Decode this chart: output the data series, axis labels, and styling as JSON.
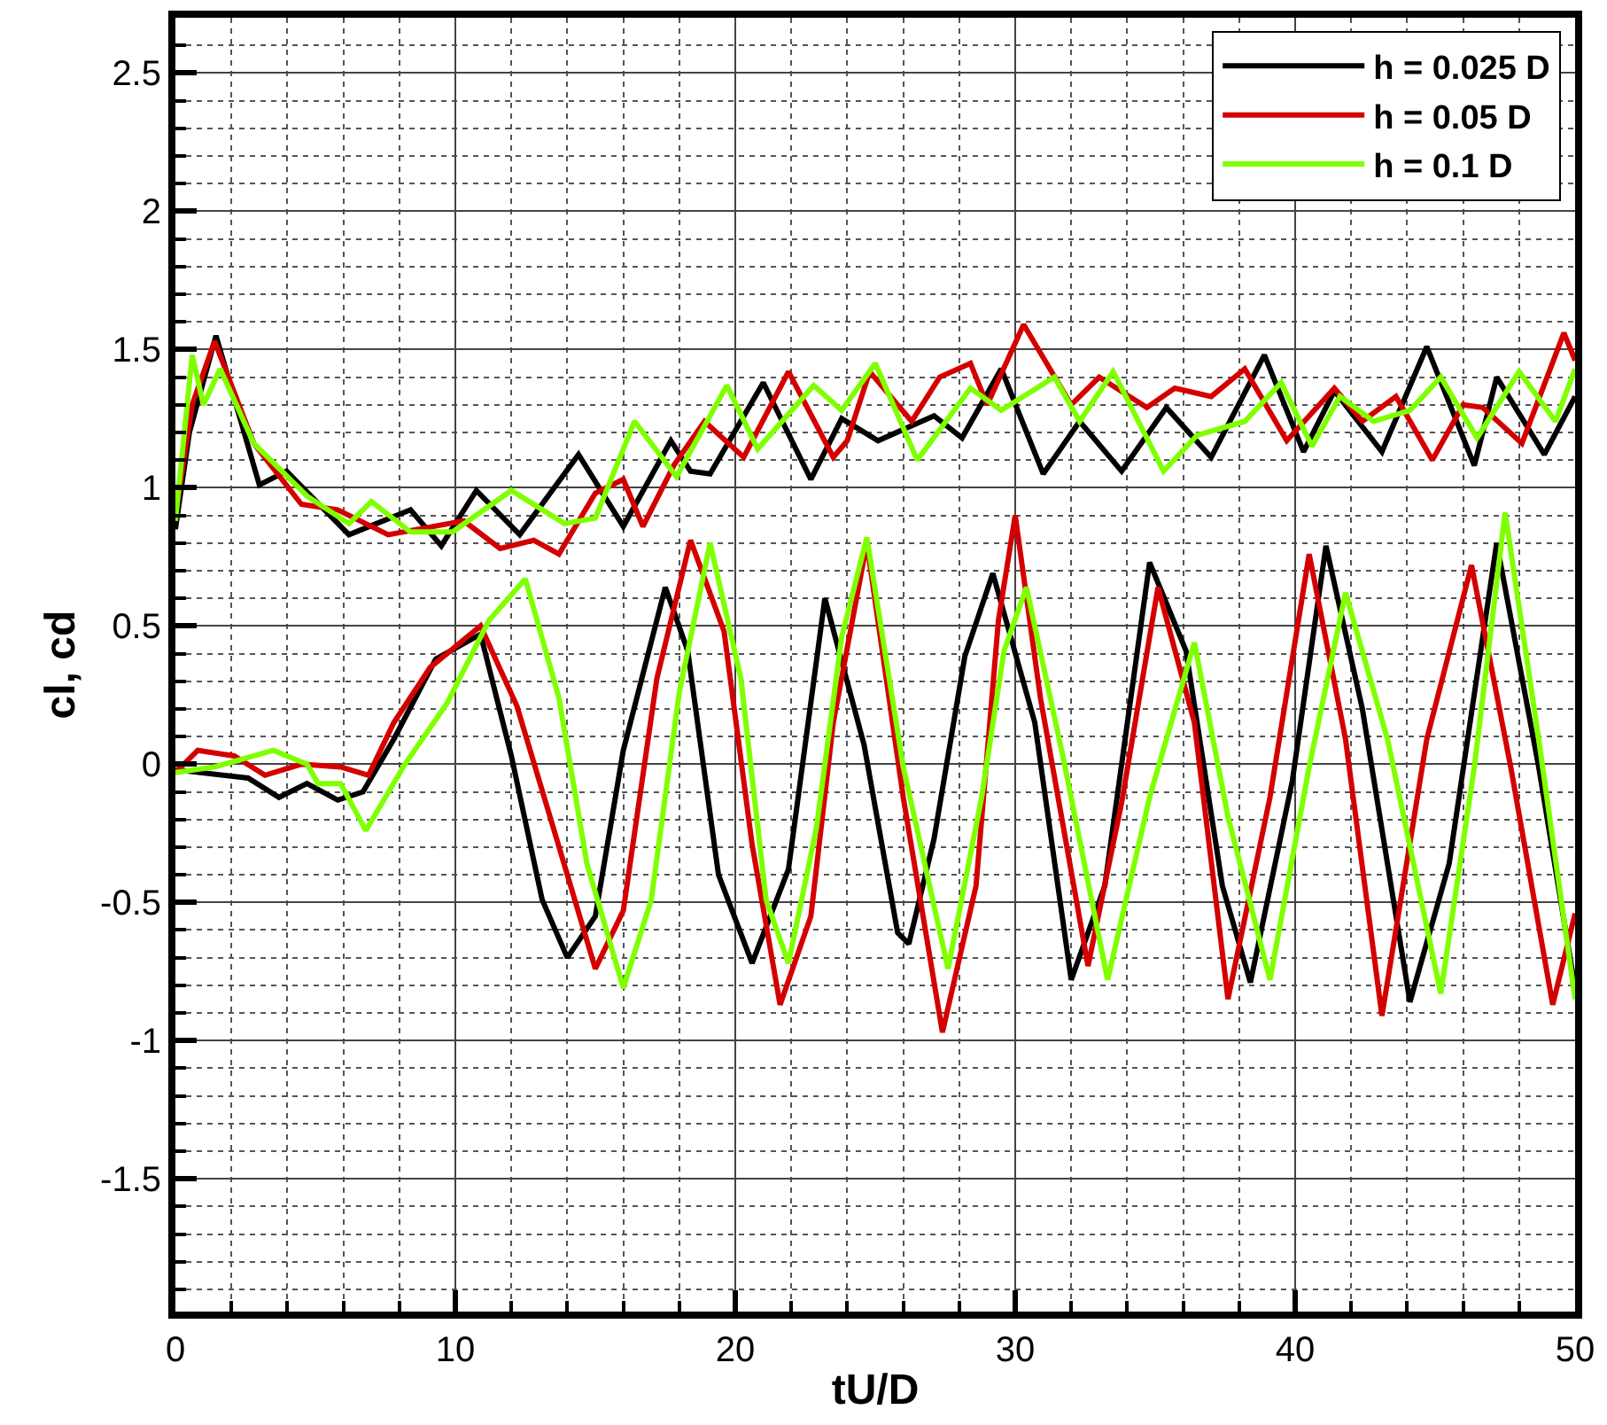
{
  "chart_data": {
    "type": "line",
    "xlabel": "tU/D",
    "ylabel": "cl, cd",
    "xlim": [
      0,
      50
    ],
    "ylim": [
      -1.98,
      2.7
    ],
    "xticks": [
      0,
      10,
      20,
      30,
      40,
      50
    ],
    "yticks": [
      -1.5,
      -1,
      -0.5,
      0,
      0.5,
      1,
      1.5,
      2,
      2.5
    ],
    "grid": true,
    "legend": "top right",
    "marker": "none",
    "line_style": "solid",
    "series": [
      {
        "name": "h = 0.025 D",
        "color": "#000000",
        "x": [
          0,
          0.5,
          1.45,
          3.0,
          3.97,
          6.2,
          8.4,
          9.5,
          10.75,
          12.3,
          14.4,
          16.0,
          17.7,
          18.4,
          19.1,
          21.0,
          22.7,
          23.8,
          25.1,
          27.1,
          28.1,
          29.5,
          31.0,
          32.3,
          33.8,
          35.4,
          37.0,
          38.9,
          40.3,
          41.4,
          43.1,
          44.7,
          46.4,
          47.2,
          48.9,
          50
        ],
        "values": [
          0.85,
          1.2,
          1.55,
          1.01,
          1.06,
          0.83,
          0.92,
          0.79,
          0.99,
          0.83,
          1.12,
          0.86,
          1.17,
          1.06,
          1.05,
          1.38,
          1.03,
          1.25,
          1.17,
          1.26,
          1.18,
          1.43,
          1.05,
          1.24,
          1.06,
          1.29,
          1.11,
          1.48,
          1.13,
          1.35,
          1.13,
          1.51,
          1.08,
          1.4,
          1.12,
          1.33
        ]
      },
      {
        "name": "h = 0.05 D",
        "color": "#d40000",
        "x": [
          0,
          0.6,
          1.4,
          2.8,
          4.5,
          5.8,
          7.6,
          10.3,
          11.6,
          12.8,
          13.7,
          15.0,
          16.0,
          16.7,
          17.8,
          18.9,
          20.3,
          21.9,
          23.5,
          24.0,
          24.8,
          26.3,
          27.3,
          28.4,
          29.0,
          30.3,
          32.0,
          33.0,
          34.7,
          35.7,
          37.0,
          38.2,
          39.7,
          41.4,
          42.4,
          43.6,
          44.9,
          46.0,
          46.7,
          48.1,
          49.6,
          50
        ],
        "values": [
          0.9,
          1.3,
          1.53,
          1.16,
          0.94,
          0.92,
          0.83,
          0.88,
          0.78,
          0.81,
          0.76,
          0.98,
          1.03,
          0.86,
          1.08,
          1.24,
          1.11,
          1.42,
          1.11,
          1.17,
          1.42,
          1.24,
          1.4,
          1.45,
          1.3,
          1.59,
          1.3,
          1.4,
          1.29,
          1.36,
          1.33,
          1.43,
          1.17,
          1.36,
          1.24,
          1.33,
          1.1,
          1.3,
          1.29,
          1.16,
          1.56,
          1.46
        ]
      },
      {
        "name": "h = 0.1 D",
        "color": "#80ff00",
        "x": [
          0,
          0.6,
          1.0,
          1.6,
          2.8,
          4.7,
          6.2,
          7.0,
          8.4,
          9.9,
          12.0,
          13.9,
          15.0,
          16.4,
          17.9,
          19.7,
          20.8,
          22.8,
          23.8,
          25.0,
          26.5,
          28.4,
          29.5,
          31.4,
          32.3,
          33.5,
          35.3,
          36.5,
          38.2,
          39.5,
          40.6,
          41.6,
          42.8,
          44.1,
          45.2,
          46.5,
          48.0,
          49.3,
          50
        ],
        "values": [
          0.88,
          1.48,
          1.3,
          1.43,
          1.16,
          0.97,
          0.87,
          0.95,
          0.84,
          0.84,
          0.99,
          0.87,
          0.89,
          1.24,
          1.04,
          1.37,
          1.14,
          1.37,
          1.28,
          1.45,
          1.1,
          1.36,
          1.28,
          1.4,
          1.24,
          1.42,
          1.06,
          1.19,
          1.24,
          1.38,
          1.15,
          1.33,
          1.24,
          1.28,
          1.4,
          1.18,
          1.42,
          1.24,
          1.43
        ]
      },
      {
        "color": "#000000",
        "x": [
          0,
          2.6,
          3.7,
          4.7,
          5.8,
          6.7,
          7.8,
          9.3,
          10.9,
          12.0,
          13.1,
          14.0,
          15.0,
          16.0,
          17.5,
          18.3,
          19.4,
          20.6,
          21.9,
          23.2,
          24.6,
          25.8,
          26.2,
          27.1,
          28.2,
          29.2,
          30.7,
          32.0,
          33.2,
          34.8,
          36.1,
          37.4,
          38.4,
          39.9,
          41.1,
          42.4,
          44.1,
          45.5,
          47.2,
          48.7,
          50
        ],
        "values": [
          -0.02,
          -0.05,
          -0.12,
          -0.07,
          -0.13,
          -0.1,
          0.09,
          0.38,
          0.47,
          0.03,
          -0.49,
          -0.7,
          -0.55,
          0.05,
          0.64,
          0.41,
          -0.4,
          -0.72,
          -0.38,
          0.6,
          0.07,
          -0.61,
          -0.65,
          -0.27,
          0.39,
          0.69,
          0.15,
          -0.78,
          -0.44,
          0.73,
          0.41,
          -0.44,
          -0.79,
          -0.06,
          0.79,
          0.2,
          -0.86,
          -0.36,
          0.8,
          -0.01,
          -0.81
        ]
      },
      {
        "color": "#d40000",
        "x": [
          0,
          0.8,
          2.1,
          3.2,
          4.5,
          5.9,
          6.9,
          7.8,
          9.1,
          10.9,
          12.2,
          13.5,
          15.0,
          16.0,
          17.2,
          18.4,
          19.6,
          20.6,
          21.6,
          22.7,
          23.5,
          24.7,
          26.0,
          27.4,
          28.6,
          29.4,
          30.0,
          30.9,
          32.6,
          33.8,
          35.1,
          36.4,
          37.6,
          39.1,
          40.5,
          41.8,
          43.1,
          44.7,
          46.3,
          47.7,
          49.2,
          50
        ],
        "values": [
          -0.03,
          0.05,
          0.03,
          -0.04,
          0,
          -0.01,
          -0.04,
          0.15,
          0.35,
          0.5,
          0.21,
          -0.23,
          -0.74,
          -0.53,
          0.31,
          0.81,
          0.48,
          -0.29,
          -0.87,
          -0.55,
          0.15,
          0.8,
          -0.12,
          -0.97,
          -0.44,
          0.52,
          0.9,
          0.24,
          -0.73,
          -0.14,
          0.64,
          0.15,
          -0.85,
          -0.12,
          0.76,
          0.09,
          -0.91,
          0.09,
          0.72,
          -0.01,
          -0.87,
          -0.54
        ]
      },
      {
        "color": "#80ff00",
        "x": [
          0,
          1.4,
          3.5,
          4.7,
          5.1,
          5.9,
          6.8,
          8.2,
          9.7,
          11.2,
          12.5,
          13.7,
          14.7,
          16.0,
          17.0,
          18.0,
          19.1,
          20.2,
          21.1,
          21.9,
          22.9,
          23.8,
          24.7,
          26.0,
          27.6,
          28.8,
          29.6,
          30.4,
          31.7,
          33.3,
          34.8,
          36.4,
          37.6,
          39.1,
          40.5,
          41.8,
          43.3,
          45.2,
          46.4,
          47.5,
          48.7,
          50
        ],
        "values": [
          -0.03,
          -0.01,
          0.05,
          0,
          -0.07,
          -0.07,
          -0.24,
          0,
          0.22,
          0.52,
          0.67,
          0.24,
          -0.36,
          -0.81,
          -0.49,
          0.26,
          0.8,
          0.31,
          -0.49,
          -0.72,
          -0.23,
          0.46,
          0.82,
          -0.01,
          -0.74,
          -0.12,
          0.41,
          0.64,
          0.03,
          -0.78,
          -0.12,
          0.44,
          -0.19,
          -0.78,
          -0.01,
          0.62,
          0.09,
          -0.83,
          -0.01,
          0.91,
          0.09,
          -0.85
        ]
      }
    ]
  }
}
